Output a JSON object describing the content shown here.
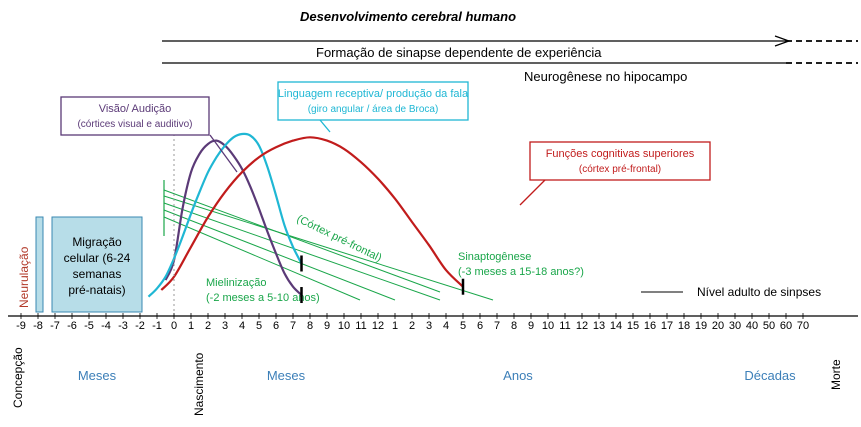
{
  "chart_data": {
    "type": "line",
    "title": "Desenvolvimento cerebral humano",
    "x_ticks": [
      "-9",
      "-8",
      "-7",
      "-6",
      "-5",
      "-4",
      "-3",
      "-2",
      "-1",
      "0",
      "1",
      "2",
      "3",
      "4",
      "5",
      "6",
      "7",
      "8",
      "9",
      "10",
      "11",
      "12",
      "1",
      "2",
      "3",
      "4",
      "5",
      "6",
      "7",
      "8",
      "9",
      "10",
      "11",
      "12",
      "13",
      "14",
      "15",
      "16",
      "17",
      "18",
      "19",
      "20",
      "30",
      "40",
      "50",
      "60",
      "70"
    ],
    "x_periods": [
      "Meses",
      "Meses",
      "Anos",
      "Décadas"
    ],
    "x_markers": {
      "conception": "Concepção",
      "birth": "Nascimento",
      "death": "Morte"
    },
    "arrows": [
      {
        "label": "Formação de sinapse dependente  de experiência",
        "start_tick": 0,
        "dashed_from_tick": 60
      },
      {
        "label": "Neurogênese no hipocampo",
        "start_tick": 0,
        "dashed_from_tick": 60
      }
    ],
    "prenatal_boxes": [
      {
        "label": "Neurulação"
      },
      {
        "label_lines": [
          "Migração",
          "celular (6-24",
          "semanas",
          "pré-natais)"
        ]
      }
    ],
    "series": [
      {
        "name": "Visão/ Audição",
        "sub": "(córtices visual e auditivo)",
        "color": "#5b3a77",
        "points": [
          [
            -1,
            0.12
          ],
          [
            0,
            0.24
          ],
          [
            1,
            0.55
          ],
          [
            2,
            0.77
          ],
          [
            3,
            0.88
          ],
          [
            4,
            0.94
          ],
          [
            5,
            0.96
          ],
          [
            6,
            0.93
          ],
          [
            7,
            0.87
          ],
          [
            8,
            0.79
          ],
          [
            9,
            0.68
          ],
          [
            10,
            0.55
          ],
          [
            11,
            0.41
          ],
          [
            12,
            0.28
          ],
          [
            13,
            0.16
          ],
          [
            14,
            0.08
          ],
          [
            15,
            0.03
          ]
        ],
        "end_tick_at": 15
      },
      {
        "name": "Linguagem receptiva/ produção da fala",
        "sub": "(giro angular / área de Broca)",
        "color": "#1fb7d4",
        "points": [
          [
            -3,
            0.02
          ],
          [
            -2,
            0.07
          ],
          [
            -1,
            0.14
          ],
          [
            0,
            0.25
          ],
          [
            1,
            0.38
          ],
          [
            2,
            0.52
          ],
          [
            3,
            0.65
          ],
          [
            4,
            0.77
          ],
          [
            5,
            0.86
          ],
          [
            6,
            0.93
          ],
          [
            7,
            0.98
          ],
          [
            8,
            1.0
          ],
          [
            9,
            0.99
          ],
          [
            10,
            0.93
          ],
          [
            11,
            0.8
          ],
          [
            12,
            0.63
          ],
          [
            13,
            0.45
          ],
          [
            14,
            0.32
          ],
          [
            15,
            0.22
          ]
        ],
        "end_tick_at": 15
      },
      {
        "name": "Funções cognitivas superiores",
        "sub": "(córtex pré-frontal)",
        "color": "#c11c1c",
        "points": [
          [
            -1.5,
            0.06
          ],
          [
            0,
            0.14
          ],
          [
            2,
            0.32
          ],
          [
            4,
            0.5
          ],
          [
            6,
            0.65
          ],
          [
            8,
            0.77
          ],
          [
            10,
            0.86
          ],
          [
            12,
            0.92
          ],
          [
            14,
            0.96
          ],
          [
            16,
            0.98
          ],
          [
            18,
            0.96
          ],
          [
            20,
            0.91
          ],
          [
            22,
            0.83
          ],
          [
            24,
            0.73
          ],
          [
            26,
            0.61
          ],
          [
            28,
            0.47
          ],
          [
            30,
            0.33
          ],
          [
            32,
            0.18
          ],
          [
            34,
            0.08
          ]
        ],
        "end_tick_at": 34
      }
    ],
    "green_annotations": {
      "cortex": "(Córtex pré-frontal)",
      "synaptogenesis": [
        "Sinaptogênese",
        "(-3 meses a 15-18 anos?)"
      ],
      "myelination": [
        "Mielinização",
        "(-2 meses a 5-10 anos)"
      ]
    },
    "adult_level_label": "Nível adulto de sinpses",
    "colors": {
      "axis": "#000000",
      "period": "#3c7fb8",
      "green": "#1aa64a",
      "box_fill": "#b7dde8",
      "box_border": "#3a88b2",
      "neurulation": "#b23a2a"
    }
  }
}
